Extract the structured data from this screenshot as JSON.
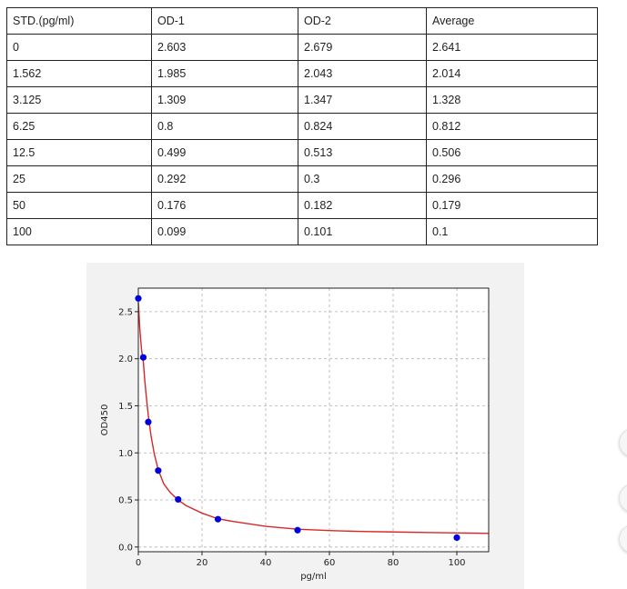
{
  "table": {
    "headers": [
      "STD.(pg/ml)",
      "OD-1",
      "OD-2",
      "Average"
    ],
    "rows": [
      [
        "0",
        "2.603",
        "2.679",
        "2.641"
      ],
      [
        "1.562",
        "1.985",
        "2.043",
        "2.014"
      ],
      [
        "3.125",
        "1.309",
        "1.347",
        "1.328"
      ],
      [
        "6.25",
        "0.8",
        "0.824",
        "0.812"
      ],
      [
        "12.5",
        "0.499",
        "0.513",
        "0.506"
      ],
      [
        "25",
        "0.292",
        "0.3",
        "0.296"
      ],
      [
        "50",
        "0.176",
        "0.182",
        "0.179"
      ],
      [
        "100",
        "0.099",
        "0.101",
        "0.1"
      ]
    ]
  },
  "chart_data": {
    "type": "scatter",
    "title": "",
    "xlabel": "pg/ml",
    "ylabel": "OD450",
    "xlim": [
      0,
      110
    ],
    "ylim": [
      -0.05,
      2.75
    ],
    "x_ticks": [
      0,
      20,
      40,
      60,
      80,
      100
    ],
    "y_ticks": [
      0.0,
      0.5,
      1.0,
      1.5,
      2.0,
      2.5
    ],
    "x_tick_labels": [
      "0",
      "20",
      "40",
      "60",
      "80",
      "100"
    ],
    "y_tick_labels": [
      "0.0",
      "0.5",
      "1.0",
      "1.5",
      "2.0",
      "2.5"
    ],
    "grid": true,
    "series": [
      {
        "kind": "points",
        "x": [
          0,
          1.562,
          3.125,
          6.25,
          12.5,
          25,
          50,
          100
        ],
        "y": [
          2.641,
          2.014,
          1.328,
          0.812,
          0.506,
          0.296,
          0.179,
          0.1
        ],
        "color": "#0000dd"
      },
      {
        "kind": "fit-curve",
        "x": [
          0,
          0.5,
          1,
          1.562,
          2,
          2.5,
          3.125,
          4,
          5,
          6.25,
          8,
          10,
          12.5,
          15,
          20,
          25,
          30,
          40,
          50,
          60,
          70,
          80,
          90,
          100,
          110
        ],
        "y": [
          2.6,
          2.3,
          2.1,
          1.97,
          1.78,
          1.6,
          1.4,
          1.18,
          0.99,
          0.82,
          0.67,
          0.58,
          0.5,
          0.44,
          0.36,
          0.3,
          0.27,
          0.22,
          0.19,
          0.175,
          0.165,
          0.16,
          0.155,
          0.15,
          0.145
        ],
        "color": "#d62728"
      }
    ]
  }
}
